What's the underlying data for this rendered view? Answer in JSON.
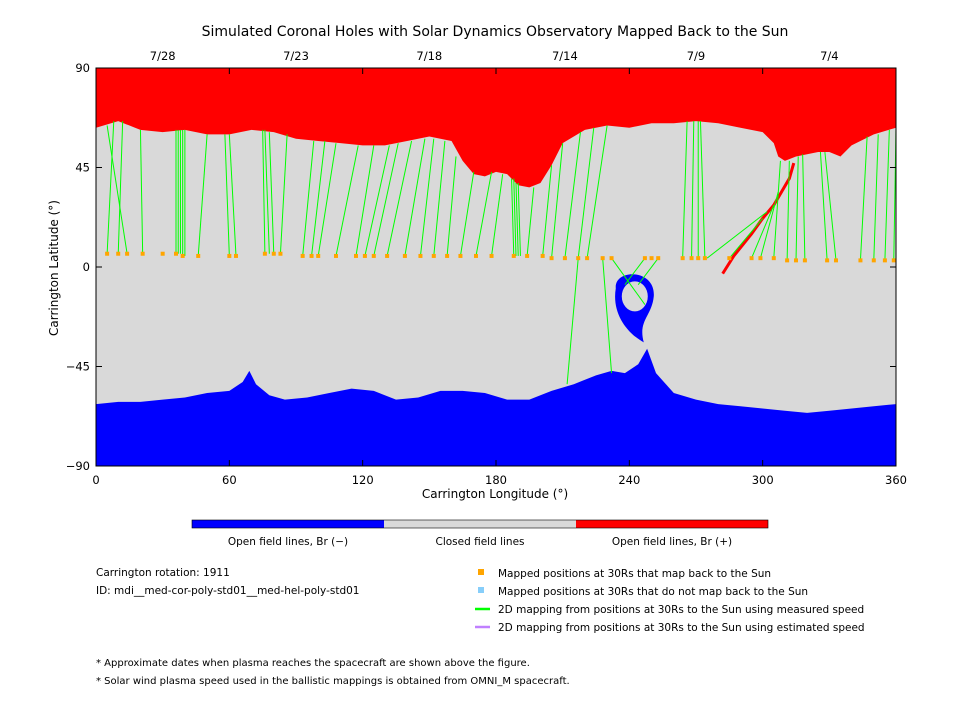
{
  "title": "Simulated Coronal Holes with Solar Dynamics Observatory Mapped Back to the Sun",
  "chart_data": {
    "type": "scatter",
    "title": "Simulated Coronal Holes with Solar Dynamics Observatory Mapped Back to the Sun",
    "xlabel": "Carrington Longitude (°)",
    "ylabel": "Carrington Latitude (°)",
    "xlim": [
      0,
      360
    ],
    "ylim": [
      -90,
      90
    ],
    "x_ticks": [
      "0",
      "60",
      "120",
      "180",
      "240",
      "300",
      "360"
    ],
    "y_ticks": [
      "90",
      "45",
      "0",
      "−45",
      "−90"
    ],
    "top_axis_dates": [
      {
        "label": "7/28",
        "lon": 30
      },
      {
        "label": "7/23",
        "lon": 90
      },
      {
        "label": "7/18",
        "lon": 150
      },
      {
        "label": "7/14",
        "lon": 211
      },
      {
        "label": "7/9",
        "lon": 270
      },
      {
        "label": "7/4",
        "lon": 330
      }
    ],
    "colors": {
      "open_negative": "#0000ff",
      "closed": "#d9d9d9",
      "open_positive": "#ff0000",
      "mapped_point": "#ffa500",
      "unmapped_point": "#87cefa",
      "measured_speed_line": "#00ff00",
      "estimated_speed_line": "#c080ff"
    },
    "north_boundary": [
      [
        0,
        63
      ],
      [
        10,
        66
      ],
      [
        20,
        62
      ],
      [
        30,
        61
      ],
      [
        40,
        62
      ],
      [
        50,
        60
      ],
      [
        60,
        60
      ],
      [
        70,
        62
      ],
      [
        80,
        61
      ],
      [
        90,
        58
      ],
      [
        100,
        57
      ],
      [
        110,
        56
      ],
      [
        120,
        55
      ],
      [
        130,
        55
      ],
      [
        140,
        57
      ],
      [
        150,
        59
      ],
      [
        160,
        57
      ],
      [
        165,
        48
      ],
      [
        170,
        42
      ],
      [
        175,
        41
      ],
      [
        180,
        43
      ],
      [
        185,
        42
      ],
      [
        190,
        37
      ],
      [
        195,
        36
      ],
      [
        200,
        38
      ],
      [
        205,
        46
      ],
      [
        210,
        56
      ],
      [
        220,
        62
      ],
      [
        230,
        64
      ],
      [
        240,
        63
      ],
      [
        250,
        65
      ],
      [
        260,
        65
      ],
      [
        270,
        66
      ],
      [
        280,
        65
      ],
      [
        290,
        63
      ],
      [
        300,
        61
      ],
      [
        305,
        56
      ],
      [
        307,
        50
      ],
      [
        310,
        48
      ],
      [
        315,
        50
      ],
      [
        320,
        51
      ],
      [
        325,
        52
      ],
      [
        330,
        52
      ],
      [
        335,
        50
      ],
      [
        340,
        55
      ],
      [
        350,
        60
      ],
      [
        360,
        63
      ]
    ],
    "south_boundary": [
      [
        0,
        -62
      ],
      [
        10,
        -61
      ],
      [
        20,
        -61
      ],
      [
        30,
        -60
      ],
      [
        40,
        -59
      ],
      [
        50,
        -57
      ],
      [
        60,
        -56
      ],
      [
        66,
        -52
      ],
      [
        69,
        -47
      ],
      [
        72,
        -53
      ],
      [
        78,
        -58
      ],
      [
        85,
        -60
      ],
      [
        95,
        -59
      ],
      [
        105,
        -57
      ],
      [
        115,
        -55
      ],
      [
        125,
        -56
      ],
      [
        135,
        -60
      ],
      [
        145,
        -59
      ],
      [
        155,
        -56
      ],
      [
        165,
        -56
      ],
      [
        175,
        -57
      ],
      [
        185,
        -60
      ],
      [
        195,
        -60
      ],
      [
        205,
        -56
      ],
      [
        215,
        -53
      ],
      [
        225,
        -49
      ],
      [
        232,
        -47
      ],
      [
        238,
        -48
      ],
      [
        244,
        -44
      ],
      [
        248,
        -37
      ],
      [
        252,
        -48
      ],
      [
        260,
        -57
      ],
      [
        270,
        -60
      ],
      [
        280,
        -62
      ],
      [
        290,
        -63
      ],
      [
        300,
        -64
      ],
      [
        310,
        -65
      ],
      [
        320,
        -66
      ],
      [
        330,
        -65
      ],
      [
        340,
        -64
      ],
      [
        350,
        -63
      ],
      [
        360,
        -62
      ]
    ],
    "south_polar_hole_extension": {
      "center_lon": 242,
      "center_lat": -16,
      "note": "closed-field island ringed by open Br(−) region near 240°"
    },
    "north_streak_red": [
      [
        314,
        47
      ],
      [
        312,
        40
      ],
      [
        305,
        28
      ],
      [
        300,
        22
      ],
      [
        295,
        15
      ],
      [
        287,
        5
      ],
      [
        282,
        -3
      ]
    ],
    "mapped_positions_30Rs": [
      {
        "lon": 5,
        "lat": 6
      },
      {
        "lon": 10,
        "lat": 6
      },
      {
        "lon": 14,
        "lat": 6
      },
      {
        "lon": 21,
        "lat": 6
      },
      {
        "lon": 30,
        "lat": 6
      },
      {
        "lon": 36,
        "lat": 6
      },
      {
        "lon": 39,
        "lat": 5
      },
      {
        "lon": 46,
        "lat": 5
      },
      {
        "lon": 60,
        "lat": 5
      },
      {
        "lon": 63,
        "lat": 5
      },
      {
        "lon": 76,
        "lat": 6
      },
      {
        "lon": 80,
        "lat": 6
      },
      {
        "lon": 83,
        "lat": 6
      },
      {
        "lon": 93,
        "lat": 5
      },
      {
        "lon": 97,
        "lat": 5
      },
      {
        "lon": 100,
        "lat": 5
      },
      {
        "lon": 108,
        "lat": 5
      },
      {
        "lon": 117,
        "lat": 5
      },
      {
        "lon": 121,
        "lat": 5
      },
      {
        "lon": 125,
        "lat": 5
      },
      {
        "lon": 131,
        "lat": 5
      },
      {
        "lon": 139,
        "lat": 5
      },
      {
        "lon": 146,
        "lat": 5
      },
      {
        "lon": 152,
        "lat": 5
      },
      {
        "lon": 158,
        "lat": 5
      },
      {
        "lon": 164,
        "lat": 5
      },
      {
        "lon": 171,
        "lat": 5
      },
      {
        "lon": 178,
        "lat": 5
      },
      {
        "lon": 188,
        "lat": 5
      },
      {
        "lon": 194,
        "lat": 5
      },
      {
        "lon": 201,
        "lat": 5
      },
      {
        "lon": 205,
        "lat": 4
      },
      {
        "lon": 211,
        "lat": 4
      },
      {
        "lon": 217,
        "lat": 4
      },
      {
        "lon": 221,
        "lat": 4
      },
      {
        "lon": 228,
        "lat": 4
      },
      {
        "lon": 232,
        "lat": 4
      },
      {
        "lon": 247,
        "lat": 4
      },
      {
        "lon": 250,
        "lat": 4
      },
      {
        "lon": 253,
        "lat": 4
      },
      {
        "lon": 264,
        "lat": 4
      },
      {
        "lon": 268,
        "lat": 4
      },
      {
        "lon": 271,
        "lat": 4
      },
      {
        "lon": 274,
        "lat": 4
      },
      {
        "lon": 285,
        "lat": 4
      },
      {
        "lon": 295,
        "lat": 4
      },
      {
        "lon": 299,
        "lat": 4
      },
      {
        "lon": 305,
        "lat": 4
      },
      {
        "lon": 311,
        "lat": 3
      },
      {
        "lon": 315,
        "lat": 3
      },
      {
        "lon": 319,
        "lat": 3
      },
      {
        "lon": 329,
        "lat": 3
      },
      {
        "lon": 333,
        "lat": 3
      },
      {
        "lon": 344,
        "lat": 3
      },
      {
        "lon": 350,
        "lat": 3
      },
      {
        "lon": 355,
        "lat": 3
      },
      {
        "lon": 359,
        "lat": 3
      }
    ],
    "field_line_mappings_measured_speed": [
      {
        "from": [
          5,
          6
        ],
        "to": [
          8,
          66
        ]
      },
      {
        "from": [
          10,
          6
        ],
        "to": [
          12,
          66
        ]
      },
      {
        "from": [
          14,
          6
        ],
        "to": [
          5,
          64
        ]
      },
      {
        "from": [
          21,
          6
        ],
        "to": [
          20,
          62
        ]
      },
      {
        "from": [
          36,
          6
        ],
        "to": [
          36,
          62
        ]
      },
      {
        "from": [
          37,
          6
        ],
        "to": [
          37,
          62
        ]
      },
      {
        "from": [
          38,
          6
        ],
        "to": [
          38,
          62
        ]
      },
      {
        "from": [
          39,
          5
        ],
        "to": [
          39,
          62
        ]
      },
      {
        "from": [
          40,
          5
        ],
        "to": [
          40,
          62
        ]
      },
      {
        "from": [
          46,
          5
        ],
        "to": [
          50,
          60
        ]
      },
      {
        "from": [
          60,
          5
        ],
        "to": [
          58,
          60
        ]
      },
      {
        "from": [
          63,
          5
        ],
        "to": [
          60,
          60
        ]
      },
      {
        "from": [
          76,
          6
        ],
        "to": [
          75,
          62
        ]
      },
      {
        "from": [
          78,
          6
        ],
        "to": [
          76,
          62
        ]
      },
      {
        "from": [
          80,
          6
        ],
        "to": [
          78,
          61
        ]
      },
      {
        "from": [
          83,
          6
        ],
        "to": [
          86,
          60
        ]
      },
      {
        "from": [
          93,
          5
        ],
        "to": [
          98,
          57
        ]
      },
      {
        "from": [
          97,
          5
        ],
        "to": [
          103,
          57
        ]
      },
      {
        "from": [
          100,
          5
        ],
        "to": [
          108,
          56
        ]
      },
      {
        "from": [
          108,
          5
        ],
        "to": [
          118,
          55
        ]
      },
      {
        "from": [
          117,
          5
        ],
        "to": [
          125,
          55
        ]
      },
      {
        "from": [
          121,
          5
        ],
        "to": [
          132,
          55
        ]
      },
      {
        "from": [
          125,
          5
        ],
        "to": [
          136,
          56
        ]
      },
      {
        "from": [
          131,
          5
        ],
        "to": [
          142,
          57
        ]
      },
      {
        "from": [
          139,
          5
        ],
        "to": [
          148,
          58
        ]
      },
      {
        "from": [
          146,
          5
        ],
        "to": [
          152,
          58
        ]
      },
      {
        "from": [
          152,
          5
        ],
        "to": [
          157,
          57
        ]
      },
      {
        "from": [
          158,
          5
        ],
        "to": [
          162,
          50
        ]
      },
      {
        "from": [
          164,
          5
        ],
        "to": [
          170,
          43
        ]
      },
      {
        "from": [
          171,
          5
        ],
        "to": [
          178,
          43
        ]
      },
      {
        "from": [
          178,
          5
        ],
        "to": [
          183,
          42
        ]
      },
      {
        "from": [
          188,
          5
        ],
        "to": [
          187,
          40
        ]
      },
      {
        "from": [
          189,
          5
        ],
        "to": [
          188,
          40
        ]
      },
      {
        "from": [
          190,
          5
        ],
        "to": [
          189,
          38
        ]
      },
      {
        "from": [
          191,
          5
        ],
        "to": [
          190,
          38
        ]
      },
      {
        "from": [
          194,
          5
        ],
        "to": [
          197,
          36
        ]
      },
      {
        "from": [
          201,
          5
        ],
        "to": [
          205,
          46
        ]
      },
      {
        "from": [
          205,
          4
        ],
        "to": [
          210,
          56
        ]
      },
      {
        "from": [
          211,
          4
        ],
        "to": [
          218,
          61
        ]
      },
      {
        "from": [
          217,
          4
        ],
        "to": [
          224,
          63
        ]
      },
      {
        "from": [
          221,
          4
        ],
        "to": [
          230,
          64
        ]
      },
      {
        "from": [
          228,
          4
        ],
        "to": [
          232,
          -48
        ]
      },
      {
        "from": [
          217,
          4
        ],
        "to": [
          212,
          -53
        ]
      },
      {
        "from": [
          232,
          4
        ],
        "to": [
          247,
          -17
        ]
      },
      {
        "from": [
          247,
          4
        ],
        "to": [
          238,
          -8
        ]
      },
      {
        "from": [
          253,
          4
        ],
        "to": [
          244,
          -8
        ]
      },
      {
        "from": [
          264,
          4
        ],
        "to": [
          266,
          66
        ]
      },
      {
        "from": [
          268,
          4
        ],
        "to": [
          269,
          66
        ]
      },
      {
        "from": [
          271,
          4
        ],
        "to": [
          271,
          66
        ]
      },
      {
        "from": [
          274,
          4
        ],
        "to": [
          272,
          66
        ]
      },
      {
        "from": [
          285,
          4
        ],
        "to": [
          300,
          22
        ]
      },
      {
        "from": [
          295,
          4
        ],
        "to": [
          305,
          28
        ]
      },
      {
        "from": [
          299,
          4
        ],
        "to": [
          307,
          34
        ]
      },
      {
        "from": [
          305,
          4
        ],
        "to": [
          308,
          48
        ]
      },
      {
        "from": [
          311,
          3
        ],
        "to": [
          312,
          48
        ]
      },
      {
        "from": [
          315,
          3
        ],
        "to": [
          316,
          50
        ]
      },
      {
        "from": [
          319,
          3
        ],
        "to": [
          318,
          51
        ]
      },
      {
        "from": [
          329,
          3
        ],
        "to": [
          326,
          52
        ]
      },
      {
        "from": [
          333,
          3
        ],
        "to": [
          328,
          52
        ]
      },
      {
        "from": [
          344,
          3
        ],
        "to": [
          347,
          59
        ]
      },
      {
        "from": [
          350,
          3
        ],
        "to": [
          352,
          60
        ]
      },
      {
        "from": [
          355,
          3
        ],
        "to": [
          357,
          62
        ]
      },
      {
        "from": [
          359,
          3
        ],
        "to": [
          360,
          63
        ]
      },
      {
        "from": [
          275,
          4
        ],
        "to": [
          302,
          25
        ]
      }
    ],
    "colorbar": [
      {
        "label": "Open field lines, Br (−)",
        "color": "#0000ff"
      },
      {
        "label": "Closed field lines",
        "color": "#d9d9d9"
      },
      {
        "label": "Open field lines, Br (+)",
        "color": "#ff0000"
      }
    ],
    "legend_placement": "bottom-right"
  },
  "info": {
    "rotation": "Carrington rotation: 1911",
    "id": "ID: mdi__med-cor-poly-std01__med-hel-poly-std01"
  },
  "legend": [
    {
      "label": "Mapped positions at 30Rs that map back to the Sun",
      "kind": "square",
      "color": "#ffa500"
    },
    {
      "label": "Mapped positions at 30Rs that do not map back to the Sun",
      "kind": "square",
      "color": "#87cefa"
    },
    {
      "label": "2D mapping from positions at 30Rs to the Sun using measured speed",
      "kind": "line",
      "color": "#00ff00"
    },
    {
      "label": "2D mapping from positions at 30Rs to the Sun using estimated speed",
      "kind": "line",
      "color": "#c080ff"
    }
  ],
  "footnotes": [
    "* Approximate dates when plasma reaches the spacecraft are shown above the figure.",
    "* Solar wind plasma speed used in the ballistic mappings is obtained from OMNI_M spacecraft."
  ]
}
